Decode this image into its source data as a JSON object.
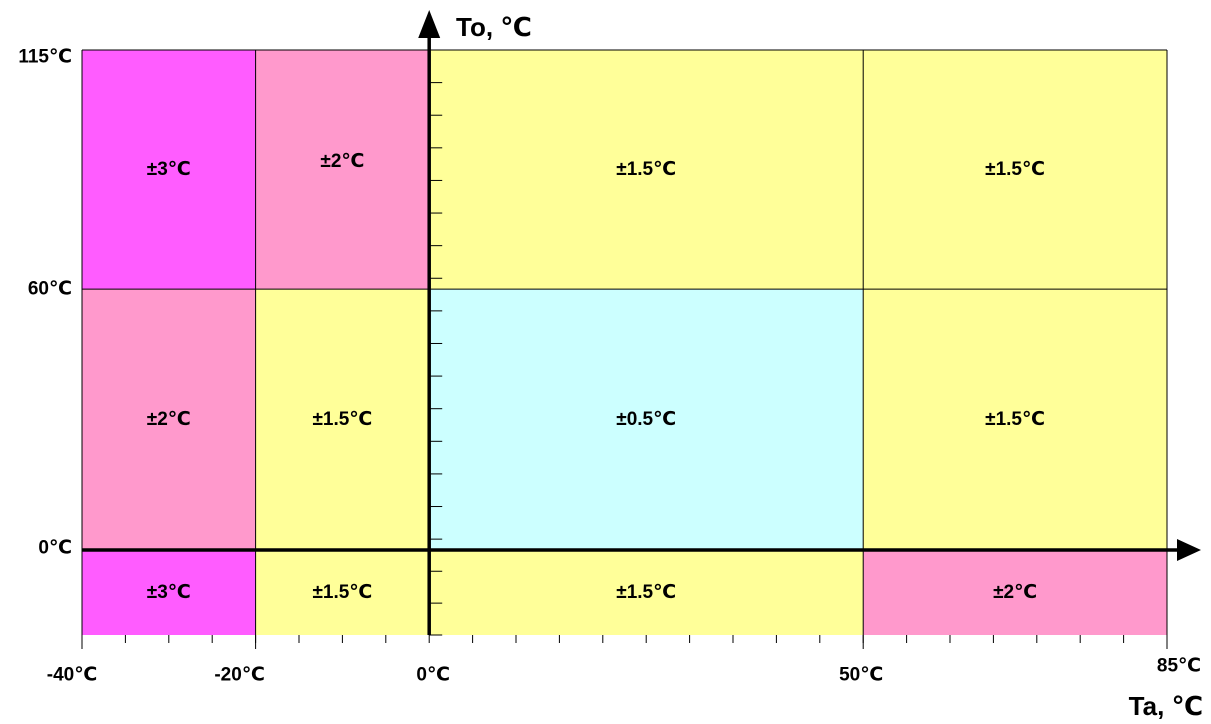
{
  "chart_data": {
    "type": "heatmap",
    "x_axis": {
      "label": "Ta, ℃",
      "ticks": [
        {
          "value": -40,
          "label": "-40℃"
        },
        {
          "value": -20,
          "label": "-20℃"
        },
        {
          "value": 0,
          "label": "0℃"
        },
        {
          "value": 50,
          "label": "50℃"
        },
        {
          "value": 85,
          "label": "85℃"
        }
      ],
      "range": [
        -40,
        85
      ],
      "minor_step": 10
    },
    "y_axis": {
      "label": "To, ℃",
      "ticks": [
        {
          "value": 0,
          "label": "0℃"
        },
        {
          "value": 60,
          "label": "60℃"
        },
        {
          "value": 115,
          "label": "115℃"
        }
      ],
      "range": [
        -20,
        115
      ],
      "minor_step": 7.5
    },
    "colors": {
      "pct3": "#FF5CFF",
      "pct2": "#FF99CC",
      "pct15": "#FFFF99",
      "pct05": "#CCFFFF",
      "grid": "#000000"
    },
    "cells": [
      {
        "x0": -40,
        "x1": -20,
        "y0": 60,
        "y1": 115,
        "text": "±3℃",
        "color": "pct3"
      },
      {
        "x0": -20,
        "x1": 0,
        "y0": 60,
        "y1": 115,
        "text": "±2℃",
        "color": "pct2"
      },
      {
        "x0": 0,
        "x1": 50,
        "y0": 60,
        "y1": 115,
        "text": "±1.5℃",
        "color": "pct15"
      },
      {
        "x0": 50,
        "x1": 85,
        "y0": 60,
        "y1": 115,
        "text": "±1.5℃",
        "color": "pct15"
      },
      {
        "x0": -40,
        "x1": -20,
        "y0": 0,
        "y1": 60,
        "text": "±2℃",
        "color": "pct2"
      },
      {
        "x0": -20,
        "x1": 0,
        "y0": 0,
        "y1": 60,
        "text": "±1.5℃",
        "color": "pct15"
      },
      {
        "x0": 0,
        "x1": 50,
        "y0": 0,
        "y1": 60,
        "text": "±0.5℃",
        "color": "pct05"
      },
      {
        "x0": 50,
        "x1": 85,
        "y0": 0,
        "y1": 60,
        "text": "±1.5℃",
        "color": "pct15"
      },
      {
        "x0": -40,
        "x1": -20,
        "y0": -20,
        "y1": 0,
        "text": "±3℃",
        "color": "pct3"
      },
      {
        "x0": -20,
        "x1": 0,
        "y0": -20,
        "y1": 0,
        "text": "±1.5℃",
        "color": "pct15"
      },
      {
        "x0": 0,
        "x1": 50,
        "y0": -20,
        "y1": 0,
        "text": "±1.5℃",
        "color": "pct15"
      },
      {
        "x0": 50,
        "x1": 85,
        "y0": -20,
        "y1": 0,
        "text": "±2℃",
        "color": "pct2"
      }
    ]
  }
}
